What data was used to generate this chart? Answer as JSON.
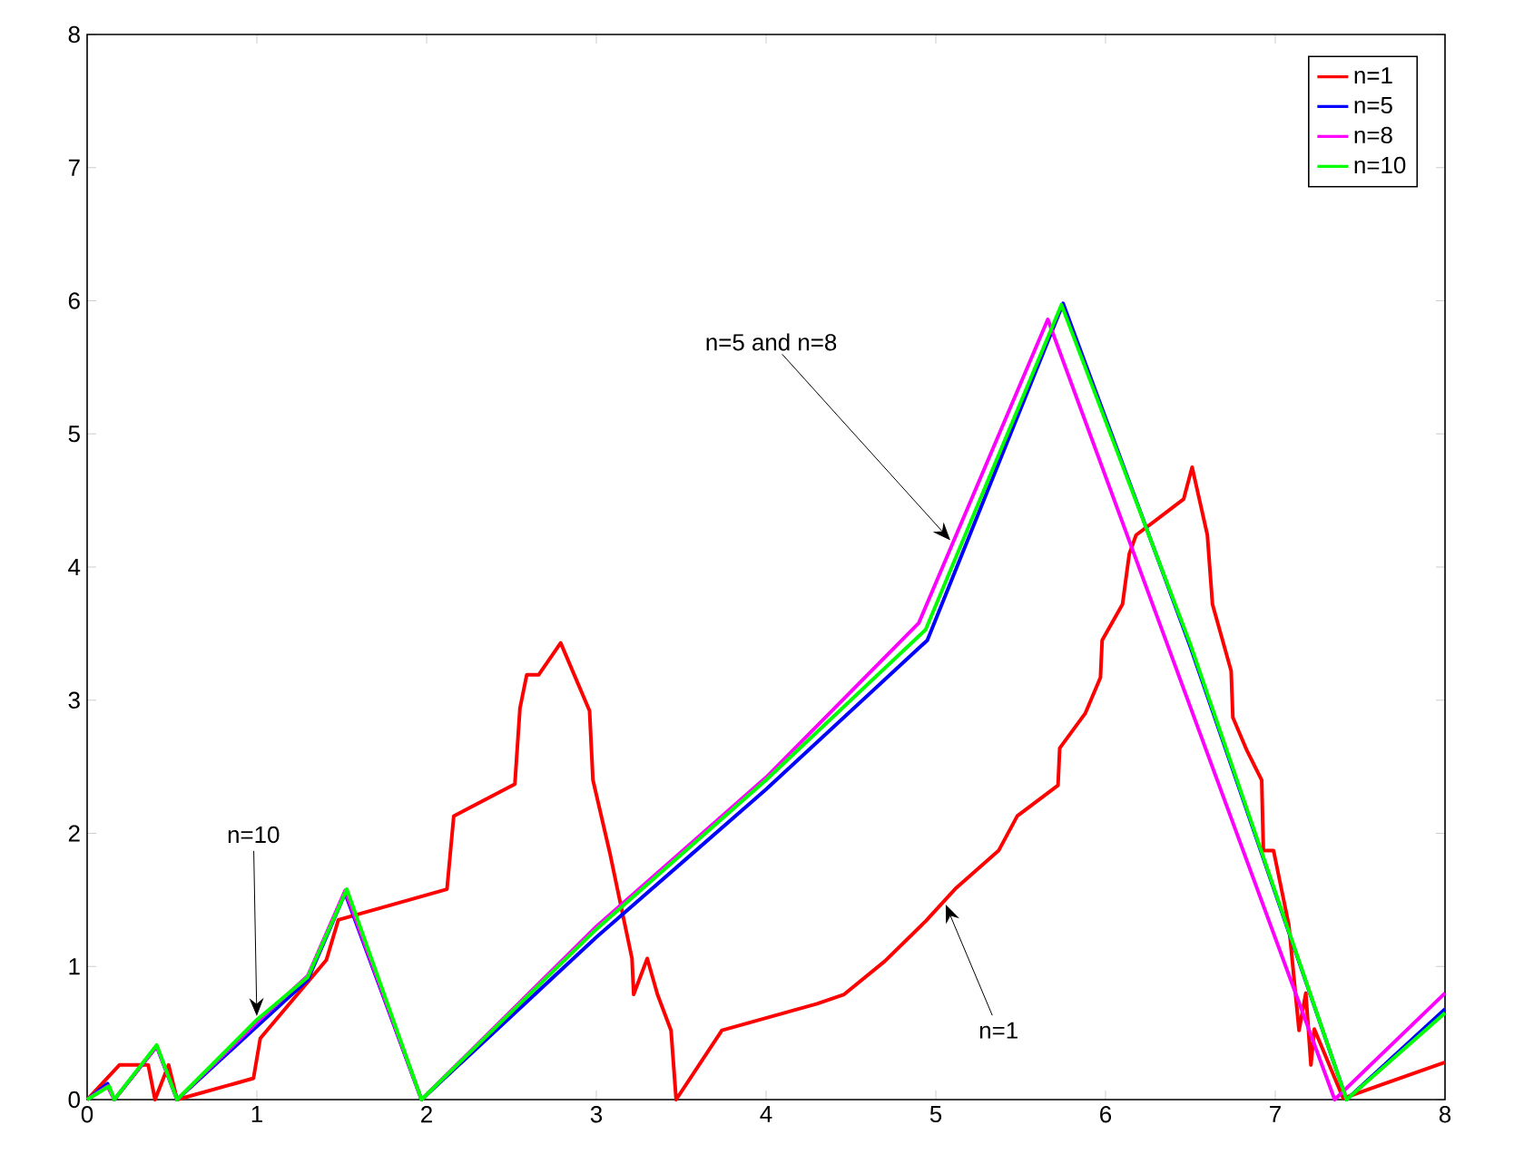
{
  "chart_data": {
    "type": "line",
    "xlim": [
      0,
      8
    ],
    "ylim": [
      0,
      8
    ],
    "xticks": [
      0,
      1,
      2,
      3,
      4,
      5,
      6,
      7,
      8
    ],
    "yticks": [
      0,
      1,
      2,
      3,
      4,
      5,
      6,
      7,
      8
    ],
    "legend": "top right",
    "line_style": "solid",
    "marker": "none",
    "series": [
      {
        "name": "n=1",
        "color": "#ff0000",
        "x": [
          0,
          0.19,
          0.36,
          0.4,
          0.48,
          0.53,
          0.98,
          1.02,
          1.41,
          1.48,
          2.12,
          2.16,
          2.52,
          2.55,
          2.59,
          2.66,
          2.79,
          2.87,
          2.96,
          2.98,
          3.08,
          3.21,
          3.22,
          3.3,
          3.36,
          3.44,
          3.47,
          3.74,
          4.3,
          4.46,
          4.7,
          4.94,
          5.12,
          5.37,
          5.48,
          5.72,
          5.73,
          5.88,
          5.97,
          5.98,
          6.1,
          6.14,
          6.18,
          6.46,
          6.51,
          6.6,
          6.63,
          6.74,
          6.75,
          6.83,
          6.92,
          6.93,
          6.99,
          7.08,
          7.14,
          7.18,
          7.21,
          7.23,
          7.4,
          8
        ],
        "values": [
          0,
          0.26,
          0.26,
          0,
          0.26,
          0,
          0.16,
          0.46,
          1.05,
          1.35,
          1.58,
          2.13,
          2.37,
          2.94,
          3.19,
          3.19,
          3.43,
          3.19,
          2.92,
          2.4,
          1.85,
          1.06,
          0.79,
          1.06,
          0.79,
          0.52,
          0,
          0.52,
          0.72,
          0.79,
          1.04,
          1.34,
          1.59,
          1.87,
          2.13,
          2.36,
          2.64,
          2.9,
          3.17,
          3.45,
          3.72,
          4.1,
          4.24,
          4.51,
          4.75,
          4.24,
          3.72,
          3.22,
          2.87,
          2.63,
          2.4,
          1.87,
          1.87,
          1.31,
          0.52,
          0.8,
          0.26,
          0.53,
          0.01,
          0.28
        ]
      },
      {
        "name": "n=5",
        "color": "#0000ff",
        "x": [
          0,
          0.12,
          0.16,
          0.41,
          0.53,
          1.0,
          1.3,
          1.52,
          1.97,
          3,
          4,
          4.95,
          5.75,
          6.5,
          7.42,
          8
        ],
        "values": [
          0,
          0.12,
          0,
          0.4,
          0,
          0.55,
          0.9,
          1.55,
          0,
          1.22,
          2.33,
          3.45,
          5.98,
          3.4,
          0,
          0.68
        ]
      },
      {
        "name": "n=8",
        "color": "#ff00ff",
        "x": [
          0,
          0.12,
          0.16,
          0.41,
          0.53,
          1.0,
          1.3,
          1.52,
          1.97,
          3,
          4,
          4.9,
          5.66,
          7.35,
          8
        ],
        "values": [
          0,
          0.1,
          0,
          0.4,
          0,
          0.58,
          0.93,
          1.57,
          0,
          1.3,
          2.42,
          3.58,
          5.86,
          0,
          0.8
        ]
      },
      {
        "name": "n=10",
        "color": "#00ff00",
        "x": [
          0,
          0.13,
          0.16,
          0.41,
          0.53,
          1.0,
          1.3,
          1.53,
          1.97,
          3,
          4,
          4.94,
          5.74,
          6.5,
          7.42,
          8
        ],
        "values": [
          0,
          0.1,
          0,
          0.41,
          0,
          0.6,
          0.92,
          1.58,
          0,
          1.28,
          2.4,
          3.53,
          5.97,
          3.42,
          0,
          0.65
        ]
      }
    ],
    "annotations": [
      {
        "text": "n=5 and n=8",
        "x": 5.1,
        "y": 4.18
      },
      {
        "text": "n=10",
        "x": 1.0,
        "y": 0.6
      },
      {
        "text": "n=1",
        "x": 5.05,
        "y": 1.49
      }
    ]
  }
}
